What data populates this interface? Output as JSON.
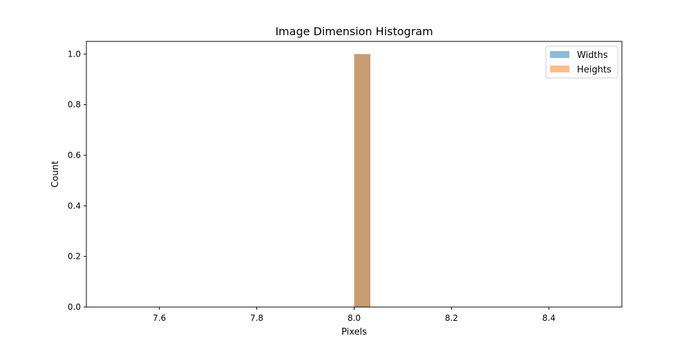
{
  "chart_data": {
    "type": "bar",
    "title": "Image Dimension Histogram",
    "xlabel": "Pixels",
    "ylabel": "Count",
    "xlim": [
      7.45,
      8.55
    ],
    "ylim": [
      0,
      1.05
    ],
    "xticks": [
      "7.6",
      "7.8",
      "8.0",
      "8.2",
      "8.4"
    ],
    "yticks": [
      "0.0",
      "0.2",
      "0.4",
      "0.6",
      "0.8",
      "1.0"
    ],
    "grid": false,
    "legend_position": "top-right",
    "bin_width": 0.0333,
    "series": [
      {
        "name": "Widths",
        "color": "#1f77b4",
        "alpha": 0.5,
        "bins": [
          {
            "x_start": 8.0,
            "x_end": 8.0333,
            "count": 1
          }
        ]
      },
      {
        "name": "Heights",
        "color": "#ff7f0e",
        "alpha": 0.5,
        "bins": [
          {
            "x_start": 8.0,
            "x_end": 8.0333,
            "count": 1
          }
        ]
      }
    ]
  }
}
